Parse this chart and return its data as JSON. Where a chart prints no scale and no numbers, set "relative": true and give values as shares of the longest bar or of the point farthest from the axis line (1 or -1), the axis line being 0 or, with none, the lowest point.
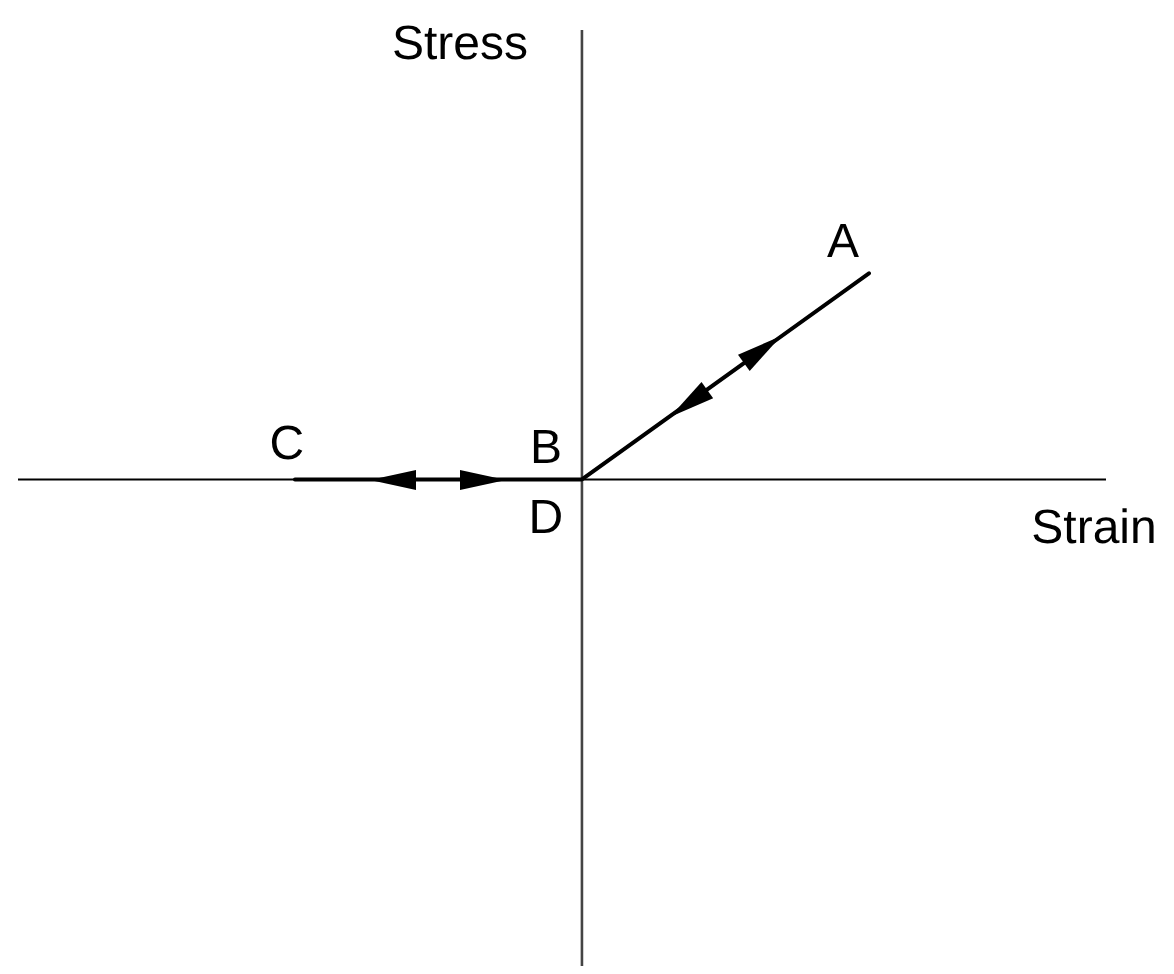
{
  "chart_data": {
    "type": "line",
    "xlabel": "Strain",
    "ylabel": "Stress",
    "categories": [
      null,
      null,
      null
    ],
    "values": [
      0,
      0,
      1
    ],
    "color": "#000000",
    "relative": true,
    "annotations": [
      "A",
      "C",
      "B",
      "D"
    ]
  }
}
